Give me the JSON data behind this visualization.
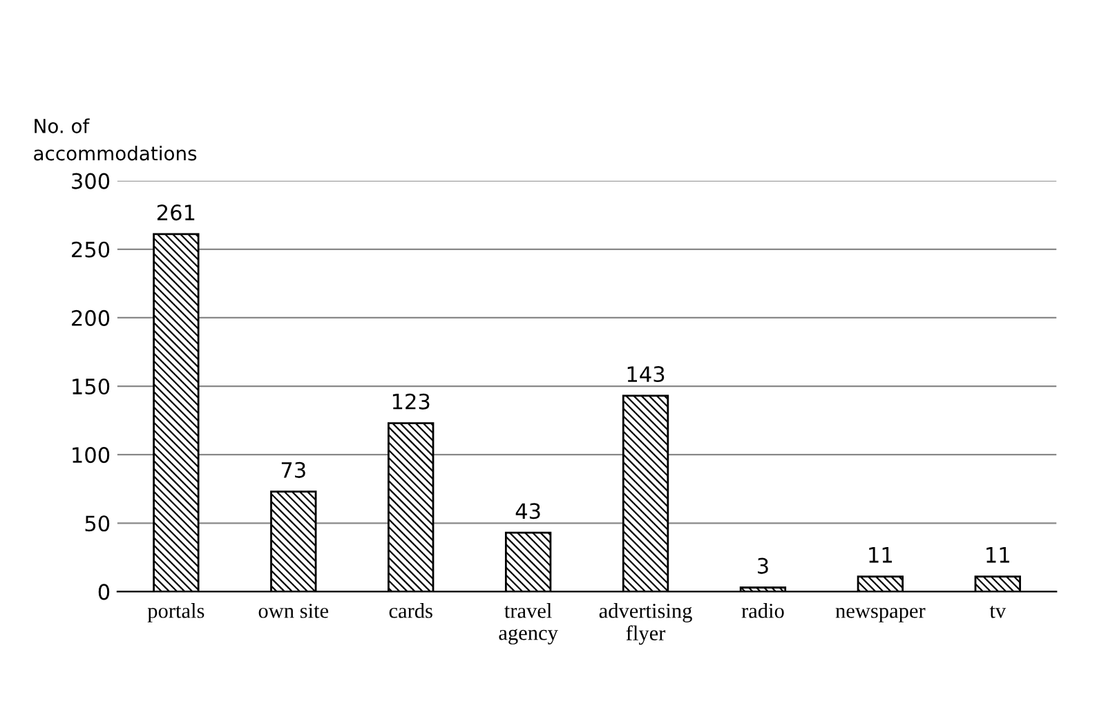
{
  "chart_data": {
    "type": "bar",
    "ylabel": "No. of\naccommodations",
    "categories": [
      "portals",
      "own site",
      "cards",
      "travel\nagency",
      "advertising\nflyer",
      "radio",
      "newspaper",
      "tv"
    ],
    "values": [
      261,
      73,
      123,
      43,
      143,
      3,
      11,
      11
    ],
    "color": "#000000",
    "ylim": [
      0,
      300
    ],
    "yticks": [
      0,
      50,
      100,
      150,
      200,
      250,
      300
    ],
    "grid": "y",
    "data_labels": true
  }
}
